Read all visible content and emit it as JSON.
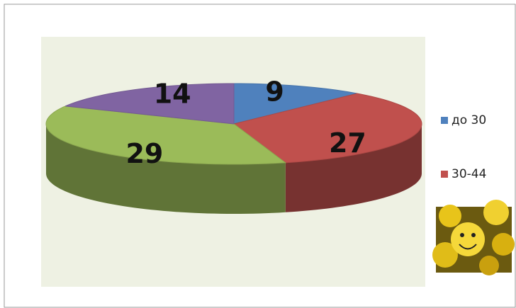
{
  "chart_data": {
    "type": "pie",
    "categories": [
      "до 30",
      "30-44",
      null,
      null
    ],
    "values": [
      9,
      27,
      29,
      14
    ],
    "colors": [
      "#4f81bd",
      "#c0504d",
      "#9bbb59",
      "#8064a2"
    ],
    "legend": "right"
  }
}
